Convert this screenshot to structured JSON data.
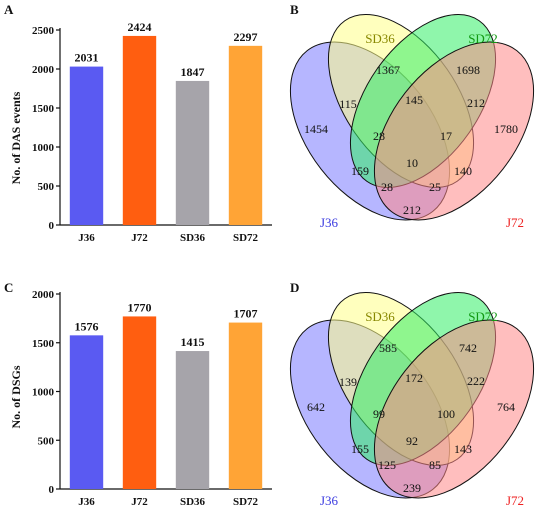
{
  "panel_labels": {
    "A": "A",
    "B": "B",
    "C": "C",
    "D": "D"
  },
  "colors": {
    "J36": "#5a5af2",
    "J72": "#ff5e10",
    "SD36": "#a6a4aa",
    "SD72": "#ffa436",
    "venn_J36": "#7a7aff",
    "venn_SD36": "#ffff88",
    "venn_SD72": "#33ee66",
    "venn_J72": "#ff8888",
    "label_J36": "#3a3ae0",
    "label_SD36": "#888800",
    "label_SD72": "#119911",
    "label_J72": "#ee2222"
  },
  "chart_data": [
    {
      "type": "bar",
      "panel": "A",
      "categories": [
        "J36",
        "J72",
        "SD36",
        "SD72"
      ],
      "values": [
        2031,
        2424,
        1847,
        2297
      ],
      "value_labels": [
        "2031",
        "2424",
        "1847",
        "2297"
      ],
      "ylabel": "No. of DAS events",
      "ylim": [
        0,
        2500
      ],
      "yticks": [
        0,
        500,
        1000,
        1500,
        2000,
        2500
      ],
      "ytick_labels": [
        "0",
        "500",
        "1000",
        "1500",
        "2000",
        "2500"
      ]
    },
    {
      "type": "venn",
      "panel": "B",
      "sets": [
        "J36",
        "SD36",
        "SD72",
        "J72"
      ],
      "regions": {
        "J36_only": "1454",
        "SD36_only": "1367",
        "SD72_only": "1698",
        "J72_only": "1780",
        "J36_SD36": "115",
        "SD36_SD72": "145",
        "SD72_J72": "212",
        "J36_J72": "212",
        "J36_SD36_SD72": "28",
        "SD36_SD72_J72": "17",
        "J36_SD72": "159",
        "SD36_J72": "140",
        "all": "10",
        "J36_SD72_J72": "28",
        "J36_SD36_J72": "25"
      }
    },
    {
      "type": "bar",
      "panel": "C",
      "categories": [
        "J36",
        "J72",
        "SD36",
        "SD72"
      ],
      "values": [
        1576,
        1770,
        1415,
        1707
      ],
      "value_labels": [
        "1576",
        "1770",
        "1415",
        "1707"
      ],
      "ylabel": "No. of DSGs",
      "ylim": [
        0,
        2000
      ],
      "yticks": [
        0,
        500,
        1000,
        1500,
        2000
      ],
      "ytick_labels": [
        "0",
        "500",
        "1000",
        "1500",
        "2000"
      ]
    },
    {
      "type": "venn",
      "panel": "D",
      "sets": [
        "J36",
        "SD36",
        "SD72",
        "J72"
      ],
      "regions": {
        "J36_only": "642",
        "SD36_only": "585",
        "SD72_only": "742",
        "J72_only": "764",
        "J36_SD36": "139",
        "SD36_SD72": "172",
        "SD72_J72": "222",
        "J36_J72": "239",
        "J36_SD36_SD72": "99",
        "SD36_SD72_J72": "100",
        "J36_SD72": "155",
        "SD36_J72": "143",
        "all": "92",
        "J36_SD72_J72": "125",
        "J36_SD36_J72": "85"
      }
    }
  ]
}
